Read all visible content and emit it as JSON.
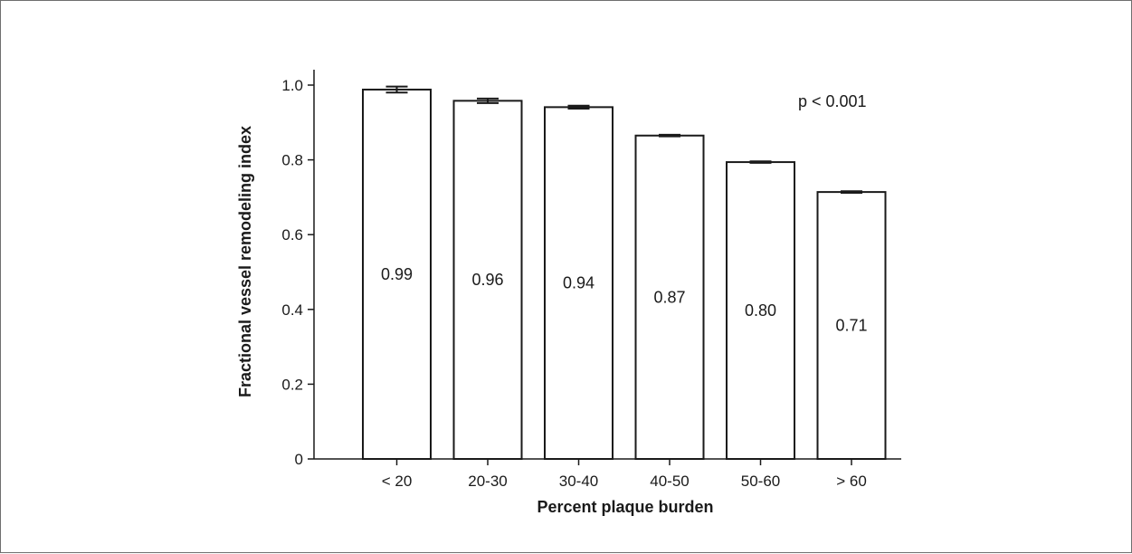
{
  "chart_data": {
    "type": "bar",
    "title": "",
    "xlabel": "Percent plaque burden",
    "ylabel": "Fractional vessel remodeling index",
    "categories": [
      "< 20",
      "20-30",
      "30-40",
      "40-50",
      "50-60",
      "> 60"
    ],
    "values": [
      0.99,
      0.96,
      0.94,
      0.87,
      0.8,
      0.71
    ],
    "value_labels": [
      "0.99",
      "0.96",
      "0.94",
      "0.87",
      "0.80",
      "0.71"
    ],
    "error_bars": [
      0.008,
      0.006,
      0.004,
      0.002,
      0.002,
      0.002
    ],
    "bar_tops": [
      0.988,
      0.958,
      0.941,
      0.865,
      0.794,
      0.714
    ],
    "ylim": [
      0,
      1.0
    ],
    "yticks": [
      0,
      0.2,
      0.4,
      0.6,
      0.8,
      1.0
    ],
    "ytick_labels": [
      "0",
      "0.2",
      "0.4",
      "0.6",
      "0.8",
      "1.0"
    ],
    "grid": false,
    "annotation": "p < 0.001",
    "colors": {
      "bar_fill": "#ffffff",
      "bar_stroke": "#1a1a1a",
      "axis": "#1a1a1a"
    }
  }
}
